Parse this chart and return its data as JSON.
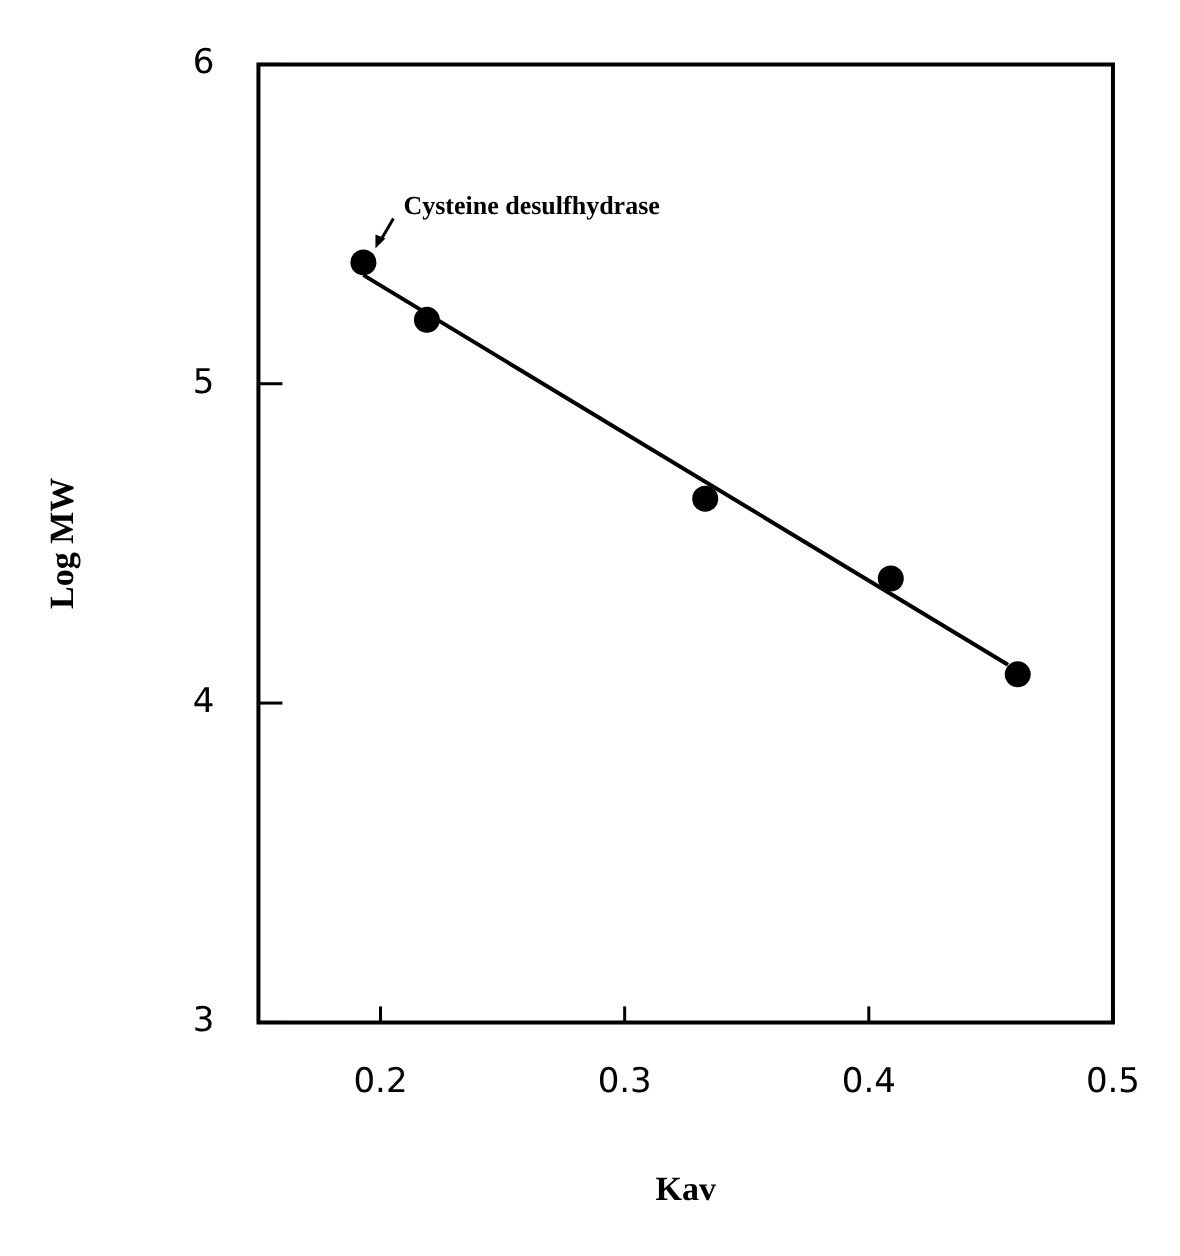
{
  "chart_data": {
    "type": "scatter",
    "xlabel": "Kav",
    "ylabel": "Log MW",
    "xlim": [
      0.15,
      0.5
    ],
    "xticks": [
      0.2,
      0.3,
      0.4,
      0.5
    ],
    "ylim": [
      3,
      6
    ],
    "yticks": [
      3,
      4,
      5,
      6
    ],
    "legend": false,
    "series": [
      {
        "marker": "circle",
        "color": "#000000",
        "x": [
          0.193,
          0.219,
          0.333,
          0.409,
          0.461
        ],
        "values": [
          5.38,
          5.2,
          4.64,
          4.39,
          4.09
        ]
      },
      {
        "type": "line",
        "marker": "none",
        "color": "#000000",
        "x": [
          0.193,
          0.457
        ],
        "values": [
          5.34,
          4.12
        ]
      }
    ],
    "annotations": [
      {
        "text": "Cysteine desulfhydrase",
        "x": 0.193,
        "y": 5.38
      }
    ]
  }
}
